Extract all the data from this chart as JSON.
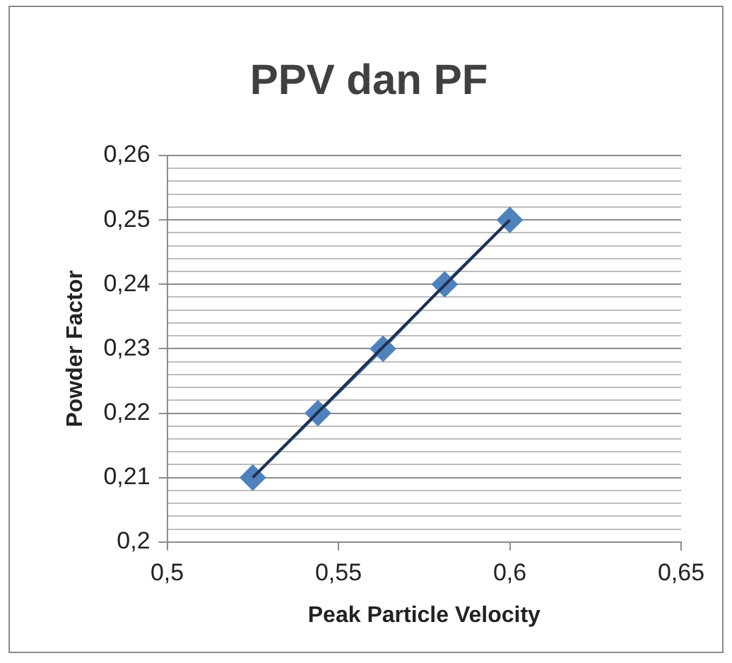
{
  "chart_data": {
    "type": "scatter",
    "title": "PPV dan PF",
    "xlabel": "Peak Particle Velocity",
    "ylabel": "Powder Factor",
    "series": [
      {
        "type": "line",
        "color": "#4f81bd",
        "marker": "diamond",
        "x": [
          0.525,
          0.544,
          0.563,
          0.581,
          0.6
        ],
        "values": [
          0.21,
          0.22,
          0.23,
          0.24,
          0.25
        ]
      },
      {
        "type": "line",
        "color": "#1f3050",
        "marker": "none",
        "x": [
          0.525,
          0.6
        ],
        "values": [
          0.21,
          0.25
        ]
      }
    ],
    "xlim": [
      0.5,
      0.65
    ],
    "xticks": [
      {
        "value": 0.5,
        "label": "0,5"
      },
      {
        "value": 0.55,
        "label": "0,55"
      },
      {
        "value": 0.6,
        "label": "0,6"
      },
      {
        "value": 0.65,
        "label": "0,65"
      }
    ],
    "ylim": [
      0.2,
      0.26
    ],
    "yticks": [
      {
        "value": 0.2,
        "label": "0,2"
      },
      {
        "value": 0.202,
        "label": null
      },
      {
        "value": 0.204,
        "label": null
      },
      {
        "value": 0.206,
        "label": null
      },
      {
        "value": 0.208,
        "label": null
      },
      {
        "value": 0.21,
        "label": "0,21"
      },
      {
        "value": 0.212,
        "label": null
      },
      {
        "value": 0.214,
        "label": null
      },
      {
        "value": 0.216,
        "label": null
      },
      {
        "value": 0.218,
        "label": null
      },
      {
        "value": 0.22,
        "label": "0,22"
      },
      {
        "value": 0.222,
        "label": null
      },
      {
        "value": 0.224,
        "label": null
      },
      {
        "value": 0.226,
        "label": null
      },
      {
        "value": 0.228,
        "label": null
      },
      {
        "value": 0.23,
        "label": "0,23"
      },
      {
        "value": 0.232,
        "label": null
      },
      {
        "value": 0.234,
        "label": null
      },
      {
        "value": 0.236,
        "label": null
      },
      {
        "value": 0.238,
        "label": null
      },
      {
        "value": 0.24,
        "label": "0,24"
      },
      {
        "value": 0.242,
        "label": null
      },
      {
        "value": 0.244,
        "label": null
      },
      {
        "value": 0.246,
        "label": null
      },
      {
        "value": 0.248,
        "label": null
      },
      {
        "value": 0.25,
        "label": "0,25"
      },
      {
        "value": 0.252,
        "label": null
      },
      {
        "value": 0.254,
        "label": null
      },
      {
        "value": 0.256,
        "label": null
      },
      {
        "value": 0.258,
        "label": null
      },
      {
        "value": 0.26,
        "label": "0,26"
      }
    ],
    "grid": "y"
  }
}
